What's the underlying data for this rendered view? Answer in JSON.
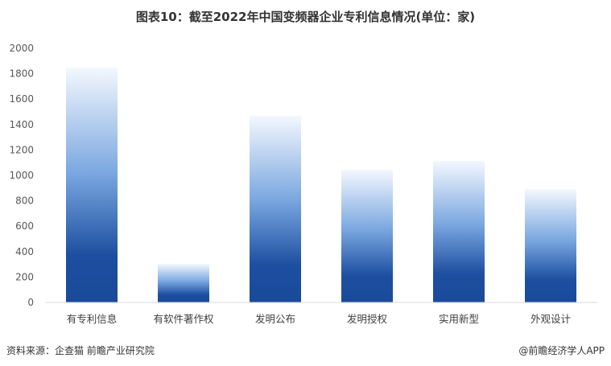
{
  "chart_data": {
    "type": "bar",
    "title": "图表10：截至2022年中国变频器企业专利信息情况(单位：家)",
    "categories": [
      "有专利信息",
      "有软件著作权",
      "发明公布",
      "发明授权",
      "实用新型",
      "外观设计"
    ],
    "values": [
      1848,
      304,
      1468,
      1044,
      1114,
      892
    ],
    "ylim": [
      0,
      2000
    ],
    "yticks": [
      0,
      200,
      400,
      600,
      800,
      1000,
      1200,
      1400,
      1600,
      1800,
      2000
    ],
    "grid": false,
    "legend": "none",
    "colors": {
      "bar_bottom": "#1a4a9a",
      "bar_mid": "#6f9fdc",
      "bar_top": "#f4f8fe"
    }
  },
  "footer": {
    "source": "资料来源：企查猫 前瞻产业研究院",
    "credit": "@前瞻经济学人APP"
  }
}
